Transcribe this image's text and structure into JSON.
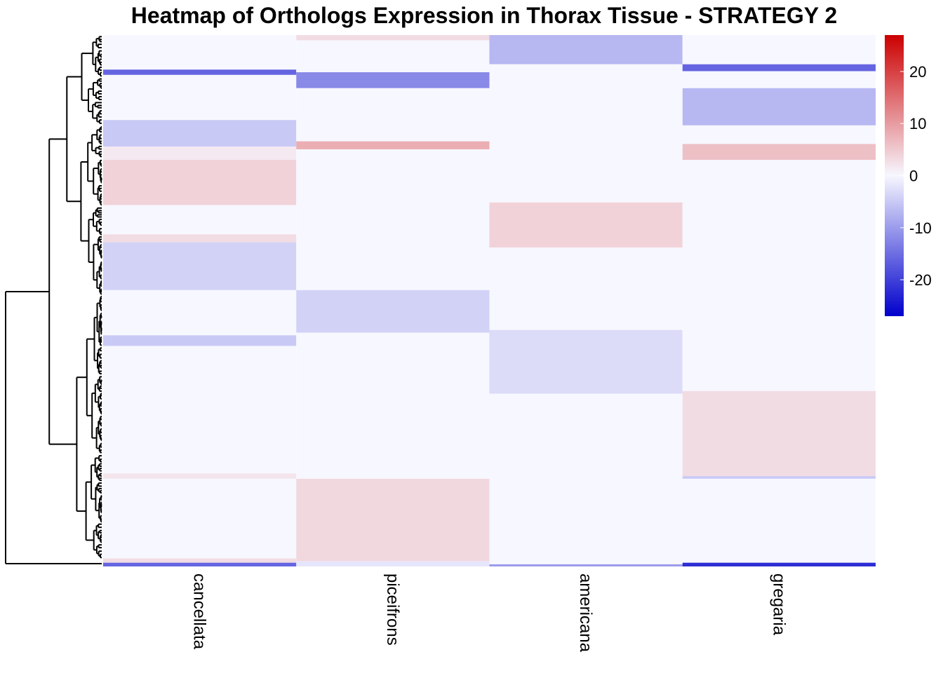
{
  "chart_data": {
    "type": "heatmap",
    "title": "Heatmap of Orthologs Expression in Thorax Tissue - STRATEGY 2",
    "columns": [
      "cancellata",
      "piceifrons",
      "americana",
      "gregaria"
    ],
    "color_scale": {
      "min": -27,
      "max": 27,
      "low_color": "#0000cc",
      "mid_color": "#f7f7ff",
      "high_color": "#cc0000",
      "ticks": [
        20,
        10,
        0,
        -10,
        -20
      ],
      "tick_labels": [
        "20",
        "10",
        "0",
        "-10",
        "-20"
      ]
    },
    "row_dendrogram": true,
    "row_blocks": {
      "cancellata": [
        {
          "from": 0.0,
          "to": 0.065,
          "value": 0
        },
        {
          "from": 0.065,
          "to": 0.075,
          "value": -16
        },
        {
          "from": 0.075,
          "to": 0.16,
          "value": 0
        },
        {
          "from": 0.16,
          "to": 0.21,
          "value": -5
        },
        {
          "from": 0.21,
          "to": 0.235,
          "value": 1.5
        },
        {
          "from": 0.235,
          "to": 0.32,
          "value": 4
        },
        {
          "from": 0.32,
          "to": 0.375,
          "value": 0
        },
        {
          "from": 0.375,
          "to": 0.39,
          "value": 3
        },
        {
          "from": 0.39,
          "to": 0.48,
          "value": -4
        },
        {
          "from": 0.48,
          "to": 0.565,
          "value": 0
        },
        {
          "from": 0.565,
          "to": 0.585,
          "value": -5
        },
        {
          "from": 0.585,
          "to": 0.825,
          "value": 0
        },
        {
          "from": 0.825,
          "to": 0.835,
          "value": 2
        },
        {
          "from": 0.835,
          "to": 0.985,
          "value": 0
        },
        {
          "from": 0.985,
          "to": 0.993,
          "value": 3
        },
        {
          "from": 0.993,
          "to": 1.0,
          "value": -16
        }
      ],
      "piceifrons": [
        {
          "from": 0.0,
          "to": 0.01,
          "value": 3
        },
        {
          "from": 0.01,
          "to": 0.07,
          "value": 0
        },
        {
          "from": 0.07,
          "to": 0.1,
          "value": -12
        },
        {
          "from": 0.1,
          "to": 0.2,
          "value": 0
        },
        {
          "from": 0.2,
          "to": 0.215,
          "value": 8
        },
        {
          "from": 0.215,
          "to": 0.48,
          "value": 0
        },
        {
          "from": 0.48,
          "to": 0.56,
          "value": -4
        },
        {
          "from": 0.56,
          "to": 0.835,
          "value": 0
        },
        {
          "from": 0.835,
          "to": 0.99,
          "value": 3.5
        },
        {
          "from": 0.99,
          "to": 1.0,
          "value": -2
        }
      ],
      "americana": [
        {
          "from": 0.0,
          "to": 0.055,
          "value": -7
        },
        {
          "from": 0.055,
          "to": 0.315,
          "value": 0
        },
        {
          "from": 0.315,
          "to": 0.4,
          "value": 4
        },
        {
          "from": 0.4,
          "to": 0.555,
          "value": 0
        },
        {
          "from": 0.555,
          "to": 0.675,
          "value": -3
        },
        {
          "from": 0.675,
          "to": 0.996,
          "value": 0
        },
        {
          "from": 0.996,
          "to": 1.0,
          "value": -10
        }
      ],
      "gregaria": [
        {
          "from": 0.0,
          "to": 0.055,
          "value": 0
        },
        {
          "from": 0.055,
          "to": 0.068,
          "value": -16
        },
        {
          "from": 0.068,
          "to": 0.1,
          "value": 0
        },
        {
          "from": 0.1,
          "to": 0.17,
          "value": -7
        },
        {
          "from": 0.17,
          "to": 0.205,
          "value": 0
        },
        {
          "from": 0.205,
          "to": 0.235,
          "value": 6
        },
        {
          "from": 0.235,
          "to": 0.67,
          "value": 0
        },
        {
          "from": 0.67,
          "to": 0.83,
          "value": 3
        },
        {
          "from": 0.83,
          "to": 0.835,
          "value": -5
        },
        {
          "from": 0.835,
          "to": 0.993,
          "value": 0
        },
        {
          "from": 0.993,
          "to": 1.0,
          "value": -22
        }
      ]
    }
  }
}
